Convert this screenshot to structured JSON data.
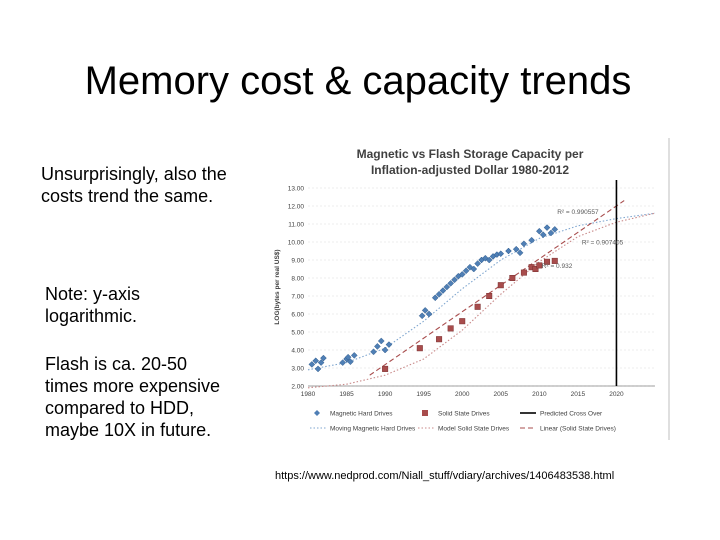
{
  "slide": {
    "title": "Memory cost & capacity trends",
    "bullets": [
      "Unsurprisingly, also the costs trend the same.",
      "Note: y-axis logarithmic.",
      "Flash is ca. 20-50 times more expensive compared to HDD, maybe 10X in future."
    ],
    "source": "https://www.nedprod.com/Niall_stuff/vdiary/archives/1406483538.html"
  },
  "chart_data": {
    "type": "scatter",
    "title": "Magnetic vs Flash Storage Capacity per Inflation-adjusted Dollar 1980-2012",
    "xlabel": "",
    "ylabel": "LOG(bytes per real US$)",
    "xlim": [
      1980,
      2025
    ],
    "ylim": [
      2.0,
      13.0
    ],
    "x_ticks": [
      "1980",
      "1985",
      "1990",
      "1995",
      "2000",
      "2005",
      "2010",
      "2015",
      "2020"
    ],
    "y_ticks": [
      "13.00",
      "12.00",
      "11.00",
      "10.00",
      "9.00",
      "8.00",
      "7.00",
      "6.00",
      "5.00",
      "4.00",
      "3.00",
      "2.00"
    ],
    "annotations": [
      "R² = 0.990557",
      "R² = 0.907405",
      "R² = 0.932"
    ],
    "legend_position": "bottom",
    "colors": {
      "hdd": "#4f7fb5",
      "ssd": "#a84c4c",
      "crossover": "#000000",
      "hdd_trend": "#7fa6cf",
      "ssd_trend": "#c98a8a",
      "grid": "#d9d9d9"
    },
    "series": [
      {
        "name": "Magnetic Hard Drives",
        "marker": "diamond",
        "points": [
          [
            1980.5,
            3.2
          ],
          [
            1981,
            3.4
          ],
          [
            1981.3,
            2.95
          ],
          [
            1981.7,
            3.3
          ],
          [
            1982,
            3.55
          ],
          [
            1984.5,
            3.3
          ],
          [
            1985,
            3.5
          ],
          [
            1985.2,
            3.6
          ],
          [
            1985.5,
            3.35
          ],
          [
            1986,
            3.7
          ],
          [
            1988.5,
            3.9
          ],
          [
            1989,
            4.2
          ],
          [
            1989.5,
            4.5
          ],
          [
            1990,
            4.0
          ],
          [
            1990.5,
            4.3
          ],
          [
            1994.8,
            5.9
          ],
          [
            1995.2,
            6.2
          ],
          [
            1995.7,
            6.0
          ],
          [
            1996.5,
            6.9
          ],
          [
            1997,
            7.1
          ],
          [
            1997.5,
            7.3
          ],
          [
            1998,
            7.5
          ],
          [
            1998.5,
            7.7
          ],
          [
            1999,
            7.9
          ],
          [
            1999.5,
            8.1
          ],
          [
            2000,
            8.2
          ],
          [
            2000.5,
            8.4
          ],
          [
            2001,
            8.6
          ],
          [
            2001.5,
            8.5
          ],
          [
            2002,
            8.8
          ],
          [
            2002.5,
            9.0
          ],
          [
            2003,
            9.1
          ],
          [
            2003.5,
            9.0
          ],
          [
            2004,
            9.2
          ],
          [
            2004.5,
            9.3
          ],
          [
            2005,
            9.35
          ],
          [
            2006,
            9.5
          ],
          [
            2007,
            9.6
          ],
          [
            2007.5,
            9.4
          ],
          [
            2008,
            9.9
          ],
          [
            2009,
            10.1
          ],
          [
            2010,
            10.6
          ],
          [
            2010.5,
            10.4
          ],
          [
            2011,
            10.8
          ],
          [
            2011.5,
            10.5
          ],
          [
            2012,
            10.7
          ]
        ]
      },
      {
        "name": "Solid State Drives",
        "marker": "square",
        "points": [
          [
            1990,
            2.95
          ],
          [
            1994.5,
            4.1
          ],
          [
            1997,
            4.6
          ],
          [
            1998.5,
            5.2
          ],
          [
            2000,
            5.6
          ],
          [
            2002,
            6.4
          ],
          [
            2003.5,
            7.0
          ],
          [
            2005,
            7.6
          ],
          [
            2006.5,
            8.0
          ],
          [
            2008,
            8.3
          ],
          [
            2009,
            8.6
          ],
          [
            2009.5,
            8.5
          ],
          [
            2010,
            8.7
          ],
          [
            2011,
            8.9
          ],
          [
            2012,
            8.95
          ]
        ]
      }
    ],
    "trendlines": [
      {
        "name": "Moving Magnetic Hard Drives",
        "style": "dotted",
        "points": [
          [
            1980,
            2.9
          ],
          [
            1985,
            3.3
          ],
          [
            1990,
            4.1
          ],
          [
            1995,
            5.6
          ],
          [
            2000,
            7.4
          ],
          [
            2005,
            9.0
          ],
          [
            2010,
            10.2
          ],
          [
            2015,
            10.9
          ],
          [
            2020,
            11.3
          ],
          [
            2025,
            11.6
          ]
        ]
      },
      {
        "name": "Model Solid State Drives",
        "style": "dotted",
        "points": [
          [
            1980,
            1.9
          ],
          [
            1985,
            2.1
          ],
          [
            1990,
            2.6
          ],
          [
            1995,
            3.5
          ],
          [
            2000,
            5.1
          ],
          [
            2005,
            7.1
          ],
          [
            2010,
            8.9
          ],
          [
            2015,
            10.3
          ],
          [
            2020,
            11.1
          ],
          [
            2025,
            11.6
          ]
        ]
      },
      {
        "name": "Linear (Solid State Drives)",
        "style": "dashed",
        "points": [
          [
            1988,
            2.6
          ],
          [
            2021,
            12.3
          ]
        ]
      }
    ],
    "crossover": {
      "name": "Predicted Cross Over",
      "x": 2020
    },
    "legend": [
      "Magnetic Hard Drives",
      "Solid State Drives",
      "Predicted Cross Over",
      "Moving Magnetic Hard Drives",
      "Model Solid State Drives",
      "Linear (Solid State Drives)"
    ]
  }
}
